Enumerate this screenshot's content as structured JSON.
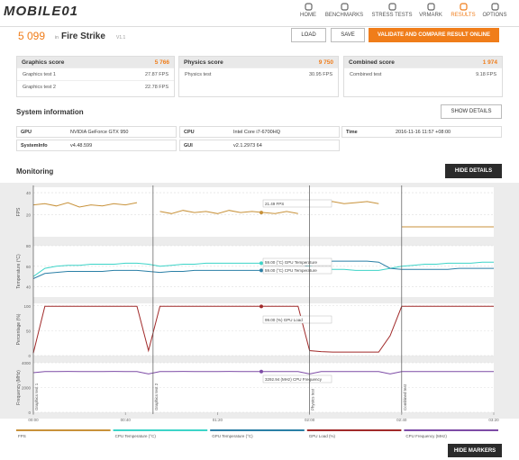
{
  "header": {
    "logo": "MOBILE01",
    "nav": [
      "HOME",
      "BENCHMARKS",
      "STRESS TESTS",
      "VRMARK",
      "RESULTS",
      "OPTIONS"
    ],
    "active_nav": 4
  },
  "result": {
    "score": "5 099",
    "in": "in",
    "test": "Fire Strike",
    "version": "V1.1",
    "buttons": [
      "LOAD",
      "SAVE",
      "VALIDATE AND COMPARE RESULT ONLINE"
    ]
  },
  "scores": [
    {
      "title": "Graphics score",
      "score": "5 766",
      "rows": [
        [
          "Graphics test 1",
          "27.87 FPS"
        ],
        [
          "Graphics test 2",
          "22.78 FPS"
        ]
      ]
    },
    {
      "title": "Physics score",
      "score": "9 750",
      "rows": [
        [
          "Physics test",
          "30.95 FPS"
        ]
      ]
    },
    {
      "title": "Combined score",
      "score": "1 974",
      "rows": [
        [
          "Combined test",
          "9.18 FPS"
        ]
      ]
    }
  ],
  "system_info": {
    "title": "System information",
    "button": "SHOW DETAILS",
    "columns": [
      [
        [
          "GPU",
          "NVIDIA GeForce GTX 950"
        ],
        [
          "SystemInfo",
          "v4.48.599"
        ]
      ],
      [
        [
          "CPU",
          "Intel Core i7-6700HQ"
        ],
        [
          "GUI",
          "v2.1.2973 64"
        ]
      ],
      [
        [
          "Time",
          "2016-11-16 11:57 +08:00"
        ]
      ]
    ]
  },
  "monitoring": {
    "title": "Monitoring",
    "button": "HIDE DETAILS",
    "markers_button": "HIDE MARKERS",
    "x": [
      0,
      5,
      10,
      15,
      20,
      25,
      30,
      35,
      40,
      45,
      50,
      55,
      60,
      65,
      70,
      75,
      80,
      85,
      90,
      95,
      100,
      105,
      110,
      115,
      120,
      125,
      130,
      135,
      140,
      145,
      150,
      155,
      160,
      165,
      170,
      175,
      180,
      185,
      190,
      195,
      200
    ],
    "xlim": [
      0,
      200
    ],
    "xticks": [
      {
        "value": 0,
        "label": "00:00"
      },
      {
        "value": 40,
        "label": "00:40"
      },
      {
        "value": 80,
        "label": "01:20"
      },
      {
        "value": 120,
        "label": "02:00"
      },
      {
        "value": 160,
        "label": "02:40"
      },
      {
        "value": 200,
        "label": "03:20"
      }
    ],
    "markers": [
      {
        "label": "Graphics test 1",
        "x": 0
      },
      {
        "label": "Graphics test 2",
        "x": 52
      },
      {
        "label": "Physics test",
        "x": 120
      },
      {
        "label": "Combined test",
        "x": 160
      }
    ],
    "charts": [
      {
        "type": "line",
        "ylabel": "FPS",
        "ylim": [
          0,
          45
        ],
        "yticks": [
          20,
          40
        ],
        "annotations": [
          "21.49 FPS"
        ],
        "series": [
          {
            "name": "FPS",
            "color": "#c8923a",
            "values": [
              29,
              30,
              28,
              31,
              27,
              29,
              28,
              30,
              29,
              31,
              null,
              23,
              21,
              24,
              22,
              23,
              21,
              24,
              22,
              23,
              22,
              21,
              23,
              21,
              null,
              31,
              32,
              30,
              31,
              32,
              30,
              null,
              9,
              9,
              9,
              9,
              9,
              9,
              9,
              9,
              9
            ]
          }
        ]
      },
      {
        "type": "line",
        "ylabel": "Temperature (°C)",
        "ylim": [
          30,
          80
        ],
        "yticks": [
          40,
          60,
          80
        ],
        "annotations": [
          "59.00 (°C) GPU Temperature",
          "59.00 (°C) CPU Temperature"
        ],
        "series": [
          {
            "name": "CPU Temperature (°C)",
            "color": "#3dd4c8",
            "values": [
              50,
              58,
              60,
              61,
              61,
              62,
              62,
              62,
              63,
              63,
              62,
              60,
              61,
              62,
              62,
              63,
              63,
              63,
              63,
              63,
              63,
              63,
              63,
              63,
              60,
              58,
              57,
              57,
              56,
              56,
              56,
              58,
              60,
              61,
              62,
              62,
              63,
              63,
              63,
              64,
              64
            ]
          },
          {
            "name": "GPU Temperature (°C)",
            "color": "#2a7fa6",
            "values": [
              48,
              53,
              54,
              55,
              55,
              55,
              55,
              56,
              56,
              56,
              55,
              54,
              55,
              55,
              56,
              56,
              56,
              56,
              56,
              56,
              56,
              56,
              56,
              56,
              62,
              64,
              65,
              65,
              65,
              65,
              64,
              58,
              57,
              57,
              57,
              57,
              57,
              58,
              58,
              58,
              58
            ]
          }
        ]
      },
      {
        "type": "line",
        "ylabel": "Percentage (%)",
        "ylim": [
          0,
          105
        ],
        "yticks": [
          0,
          50,
          100
        ],
        "annotations": [
          "99.00 (%) GPU Load"
        ],
        "series": [
          {
            "name": "GPU Load (%)",
            "color": "#a12a2a",
            "values": [
              5,
              99,
              99,
              99,
              99,
              99,
              99,
              99,
              99,
              99,
              10,
              99,
              99,
              99,
              99,
              99,
              99,
              99,
              99,
              99,
              99,
              99,
              99,
              99,
              10,
              8,
              7,
              7,
              7,
              7,
              7,
              40,
              99,
              99,
              99,
              99,
              99,
              99,
              99,
              99,
              99
            ]
          }
        ]
      },
      {
        "type": "line",
        "ylabel": "Frequency (MHz)",
        "ylim": [
          0,
          4000
        ],
        "yticks": [
          0,
          2000,
          4000
        ],
        "annotations": [
          "3292.94 (MHz) CPU Frequency"
        ],
        "series": [
          {
            "name": "CPU Frequency (MHz)",
            "color": "#7d4ba6",
            "values": [
              3200,
              3292,
              3292,
              3300,
              3292,
              3292,
              3292,
              3300,
              3292,
              3292,
              3100,
              3292,
              3292,
              3300,
              3292,
              3292,
              3292,
              3300,
              3292,
              3292,
              3292,
              3292,
              3292,
              3292,
              3100,
              3292,
              3292,
              3292,
              3292,
              3292,
              3292,
              3100,
              3292,
              3292,
              3292,
              3292,
              3292,
              3292,
              3292,
              3292,
              3292
            ]
          }
        ]
      }
    ]
  }
}
